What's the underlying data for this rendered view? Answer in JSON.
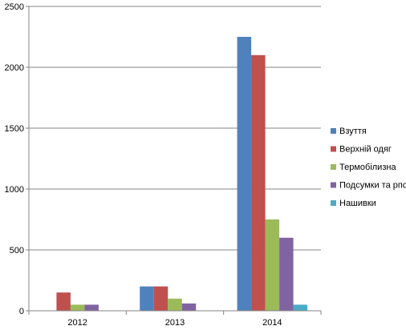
{
  "chart_data": {
    "type": "bar",
    "categories": [
      "2012",
      "2013",
      "2014"
    ],
    "series": [
      {
        "name": "Взуття",
        "color": "#4F81BD",
        "values": [
          0,
          200,
          2250
        ]
      },
      {
        "name": "Верхній одяг",
        "color": "#C0504D",
        "values": [
          150,
          200,
          2100
        ]
      },
      {
        "name": "Термобілизна",
        "color": "#9BBB59",
        "values": [
          50,
          100,
          750
        ]
      },
      {
        "name": "Подсумки та рпс",
        "color": "#8064A2",
        "values": [
          50,
          60,
          600
        ]
      },
      {
        "name": "Нашивки",
        "color": "#4BACC6",
        "values": [
          0,
          0,
          50
        ]
      }
    ],
    "ylim": [
      0,
      2500
    ],
    "yticks": [
      0,
      500,
      1000,
      1500,
      2000,
      2500
    ],
    "ytick_labels": [
      "0",
      "500",
      "1000",
      "1500",
      "2000",
      "2500"
    ],
    "grid": true,
    "legend_position": "right"
  }
}
